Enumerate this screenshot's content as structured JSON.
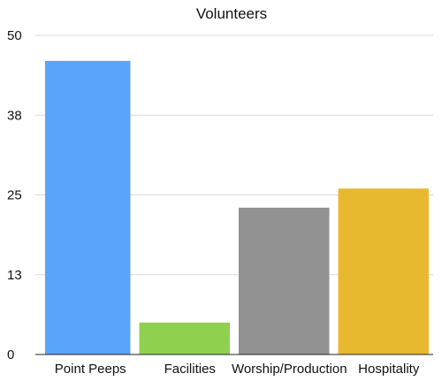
{
  "chart_data": {
    "type": "bar",
    "title": "Volunteers",
    "xlabel": "",
    "ylabel": "",
    "categories": [
      "Point Peeps",
      "Facilities",
      "Worship/Production",
      "Hospitality"
    ],
    "values": [
      46,
      5,
      23,
      26
    ],
    "colors": [
      "#5ba4fb",
      "#8fd14f",
      "#929292",
      "#e8b92f"
    ],
    "ylim": [
      0,
      50
    ],
    "yticks": [
      0,
      12.5,
      25,
      37.5,
      50
    ],
    "ytick_labels": [
      "0",
      "13",
      "25",
      "38",
      "50"
    ],
    "grid": true,
    "legend": "none"
  }
}
